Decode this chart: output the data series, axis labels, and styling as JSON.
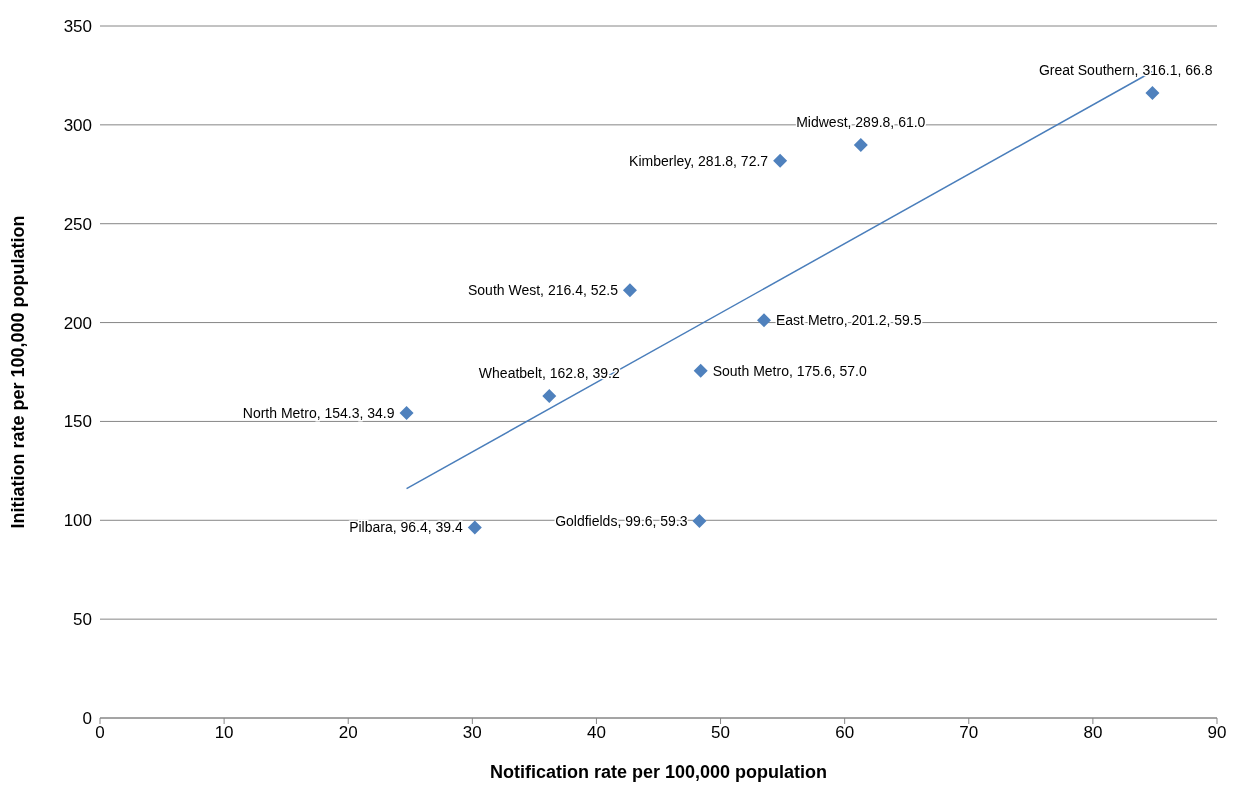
{
  "chart_data": {
    "type": "scatter",
    "xlabel": "Notification rate per 100,000 population",
    "ylabel": "Initiation rate per 100,000 population",
    "xlim": [
      0,
      90
    ],
    "xticks": [
      0,
      10,
      20,
      30,
      40,
      50,
      60,
      70,
      80,
      90
    ],
    "ylim": [
      0,
      350
    ],
    "yticks": [
      0,
      50,
      100,
      150,
      200,
      250,
      300,
      350
    ],
    "grid": "y",
    "legend": false,
    "marker": "diamond",
    "series": [
      {
        "color": "#4f81bd",
        "x": [
          84.8,
          61.3,
          54.8,
          42.7,
          53.5,
          48.4,
          36.2,
          24.7,
          30.2,
          48.3
        ],
        "values": [
          316.1,
          289.8,
          281.8,
          216.4,
          201.2,
          175.6,
          162.8,
          154.3,
          96.4,
          99.6
        ],
        "value_labels": [
          "Great Southern, 316.1, 66.8",
          "Midwest, 289.8, 61.0",
          "Kimberley, 281.8, 72.7",
          "South West, 216.4, 52.5",
          "East Metro, 201.2, 59.5",
          "South Metro, 175.6, 57.0",
          "Wheatbelt, 162.8, 39.2",
          "North Metro, 154.3, 34.9",
          "Pilbara, 96.4, 39.4",
          "Goldfields, 99.6, 59.3"
        ]
      },
      {
        "type": "line",
        "color": "#4a7ebb",
        "x": [
          24.7,
          84.8
        ],
        "values": [
          116,
          327
        ],
        "line_style": "solid",
        "marker": "none"
      }
    ]
  }
}
